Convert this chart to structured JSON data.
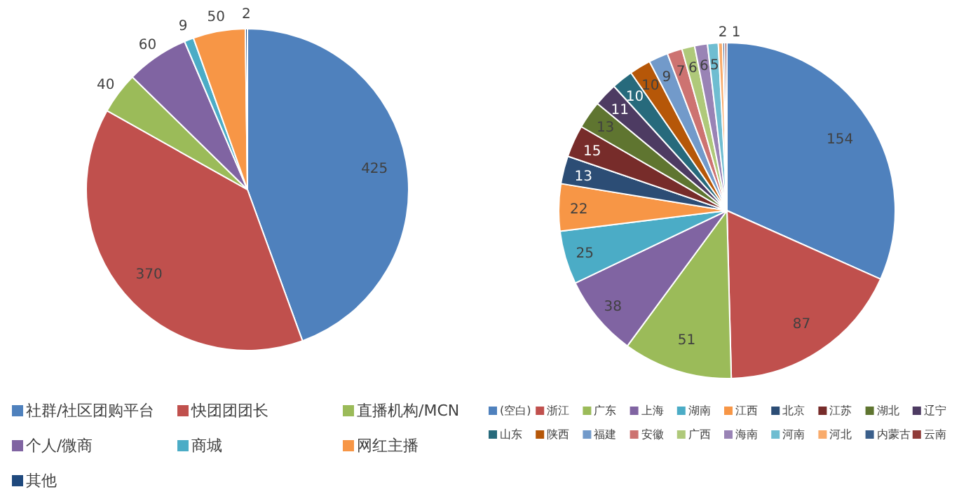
{
  "chart_data": [
    {
      "type": "pie",
      "categories": [
        "社群/社区团购平台",
        "快团团团长",
        "直播机构/MCN",
        "个人/微商",
        "商城",
        "网红主播",
        "其他"
      ],
      "values": [
        425,
        370,
        40,
        60,
        9,
        50,
        2
      ],
      "colors": [
        "#4f81bd",
        "#c0504d",
        "#9bbb59",
        "#8064a2",
        "#4bacc6",
        "#f79646",
        "#1f497d"
      ],
      "data_labels": true,
      "legend": "bottom"
    },
    {
      "type": "pie",
      "categories": [
        "(空白)",
        "浙江",
        "广东",
        "上海",
        "湖南",
        "江西",
        "北京",
        "江苏",
        "湖北",
        "辽宁",
        "山东",
        "陕西",
        "福建",
        "安徽",
        "广西",
        "海南",
        "河南",
        "河北",
        "内蒙古",
        "云南"
      ],
      "values": [
        154,
        87,
        51,
        38,
        25,
        22,
        13,
        15,
        13,
        11,
        10,
        10,
        9,
        7,
        6,
        6,
        5,
        2,
        1,
        1
      ],
      "colors": [
        "#4f81bd",
        "#c0504d",
        "#9bbb59",
        "#8064a2",
        "#4bacc6",
        "#f79646",
        "#2c4d75",
        "#772c2a",
        "#5f7530",
        "#4d3b62",
        "#276a7c",
        "#b65708",
        "#729aca",
        "#cd7371",
        "#afc97a",
        "#9983b5",
        "#6fbdd1",
        "#f9ab6b",
        "#3a5f8b",
        "#8f3b38"
      ],
      "value_labels": [
        "154",
        "87",
        "51",
        "38",
        "25",
        "22",
        "13",
        "15",
        "13",
        "11",
        "10",
        "10",
        "9",
        "7",
        "6",
        "6",
        "5",
        "2",
        "1",
        null
      ],
      "legend": "bottom"
    }
  ]
}
